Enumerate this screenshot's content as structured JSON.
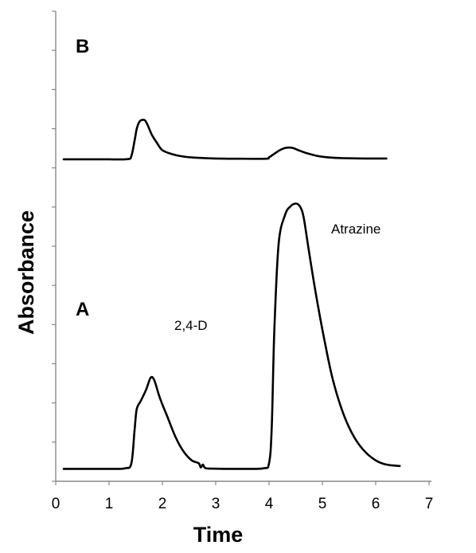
{
  "chart_data": {
    "type": "line",
    "title": "",
    "xlabel": "Time",
    "ylabel": "Absorbance",
    "xlim": [
      0,
      7
    ],
    "xticks": [
      "0",
      "1",
      "2",
      "3",
      "4",
      "5",
      "6",
      "7"
    ],
    "ylim": [
      0,
      1
    ],
    "y_tick_count": 12,
    "grid": false,
    "legend": "none",
    "line_color": "#000000",
    "series": [
      {
        "label": "A",
        "x": [
          0.15,
          0.5,
          1.0,
          1.3,
          1.42,
          1.48,
          1.52,
          1.6,
          1.7,
          1.78,
          1.85,
          1.95,
          2.1,
          2.25,
          2.4,
          2.55,
          2.68,
          2.72,
          2.76,
          2.8,
          2.9,
          3.2,
          3.5,
          3.9,
          4.0,
          4.05,
          4.1,
          4.18,
          4.3,
          4.4,
          4.5,
          4.58,
          4.65,
          4.75,
          4.9,
          5.05,
          5.2,
          5.4,
          5.6,
          5.8,
          6.0,
          6.2,
          6.45
        ],
        "y": [
          0.01,
          0.01,
          0.01,
          0.012,
          0.03,
          0.15,
          0.22,
          0.25,
          0.29,
          0.33,
          0.32,
          0.26,
          0.19,
          0.12,
          0.07,
          0.04,
          0.03,
          0.015,
          0.025,
          0.013,
          0.011,
          0.01,
          0.01,
          0.012,
          0.03,
          0.15,
          0.5,
          0.8,
          0.9,
          0.93,
          0.94,
          0.93,
          0.89,
          0.77,
          0.6,
          0.45,
          0.32,
          0.2,
          0.12,
          0.07,
          0.04,
          0.025,
          0.02
        ]
      },
      {
        "label": "B",
        "x": [
          0.15,
          0.5,
          1.0,
          1.35,
          1.42,
          1.48,
          1.52,
          1.57,
          1.62,
          1.67,
          1.72,
          1.8,
          1.9,
          2.0,
          2.2,
          2.4,
          2.6,
          3.0,
          3.5,
          3.95,
          4.0,
          4.1,
          4.2,
          4.3,
          4.38,
          4.45,
          4.55,
          4.7,
          4.9,
          5.1,
          5.4,
          5.8,
          6.2
        ],
        "y": [
          0.006,
          0.006,
          0.006,
          0.007,
          0.03,
          0.14,
          0.22,
          0.27,
          0.282,
          0.28,
          0.25,
          0.18,
          0.12,
          0.07,
          0.04,
          0.025,
          0.018,
          0.012,
          0.01,
          0.01,
          0.02,
          0.045,
          0.07,
          0.085,
          0.088,
          0.085,
          0.07,
          0.05,
          0.03,
          0.02,
          0.014,
          0.012,
          0.012
        ]
      }
    ],
    "annotations": [
      "2,4-D",
      "Atrazine"
    ]
  }
}
